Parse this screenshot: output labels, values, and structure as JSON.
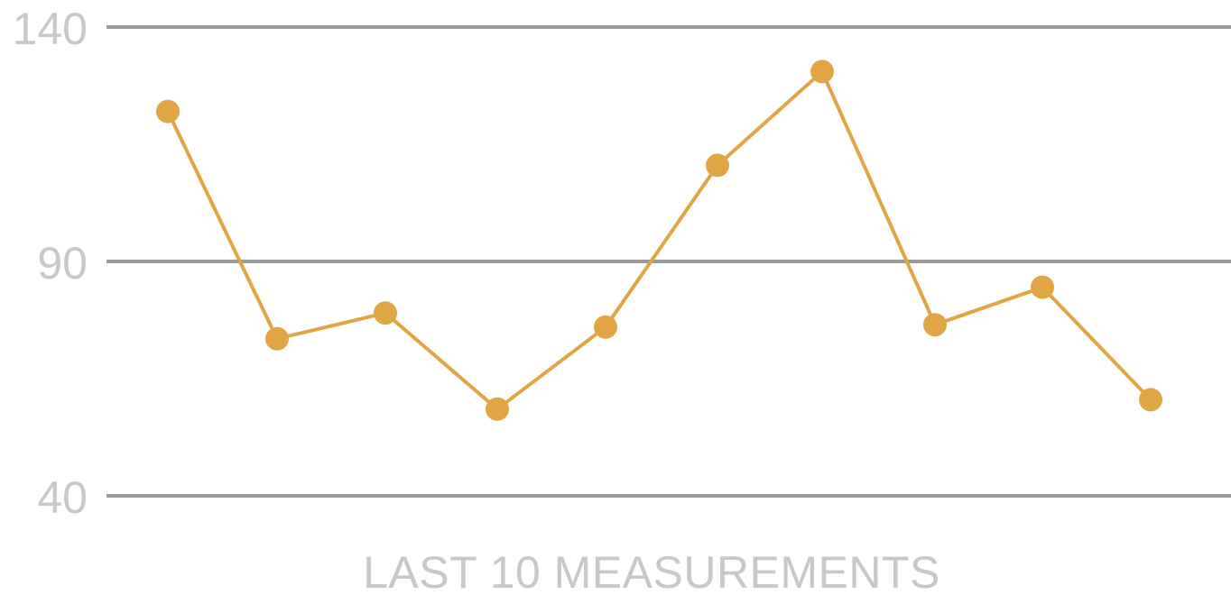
{
  "chart_data": {
    "type": "line",
    "xlabel": "LAST 10 MEASUREMENTS",
    "ylabel": "",
    "title": "",
    "ylim": [
      40,
      140
    ],
    "yticks": [
      40,
      90,
      140
    ],
    "ytick_labels": [
      "40",
      "90",
      "140"
    ],
    "x": [
      1,
      2,
      3,
      4,
      5,
      6,
      7,
      8,
      9,
      10
    ],
    "series": [
      {
        "values": [
          122,
          73.5,
          79,
          58.5,
          76,
          110.5,
          130.5,
          76.5,
          84.5,
          60.5
        ],
        "color": "#e0a645"
      }
    ],
    "grid": true,
    "markers": true,
    "legend": "none"
  }
}
